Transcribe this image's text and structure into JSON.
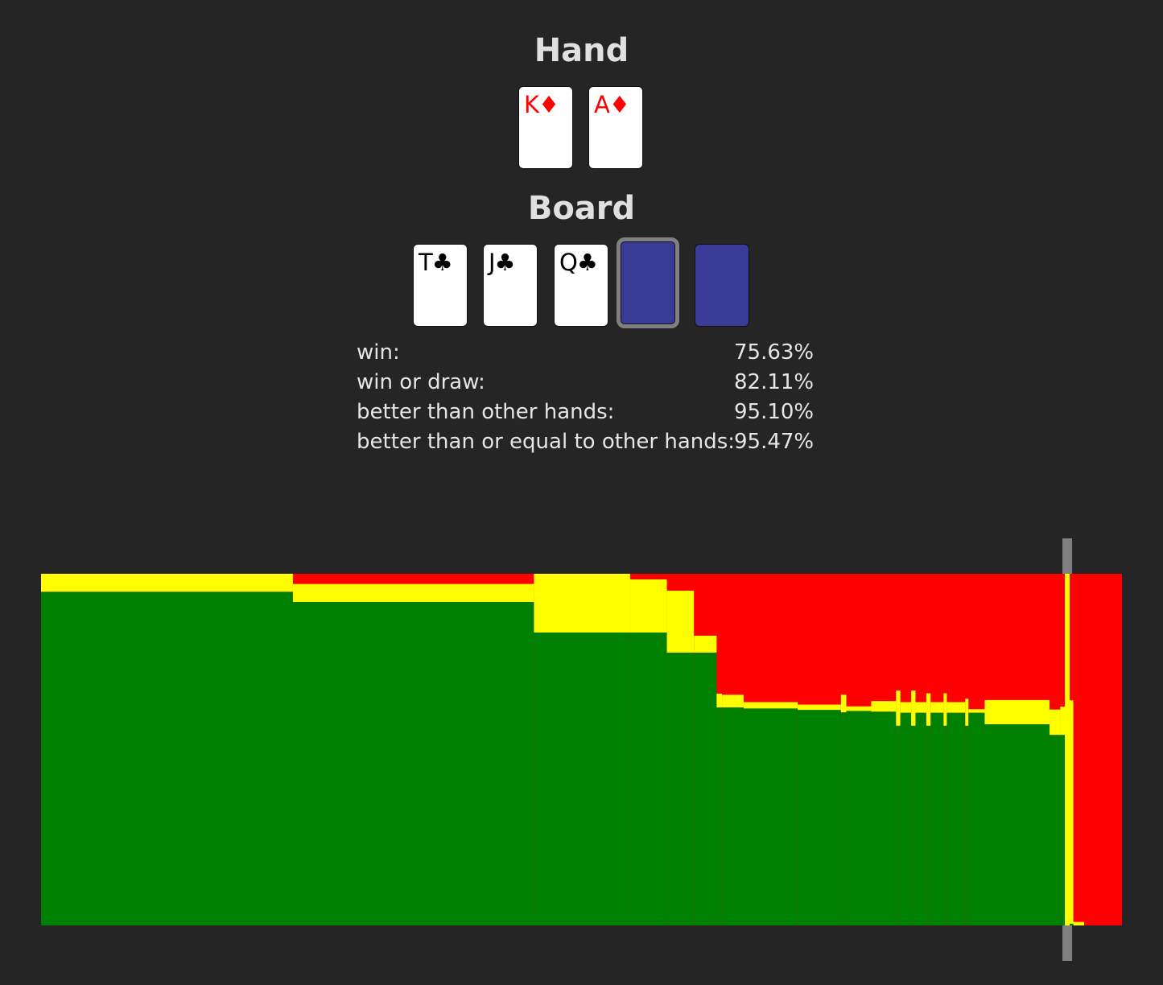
{
  "hand": {
    "title": "Hand",
    "cards": [
      {
        "rank": "K",
        "suit": "♦",
        "color": "#ff0000"
      },
      {
        "rank": "A",
        "suit": "♦",
        "color": "#ff0000"
      }
    ]
  },
  "board": {
    "title": "Board",
    "cards": [
      {
        "rank": "T",
        "suit": "♣",
        "color": "#000000"
      },
      {
        "rank": "J",
        "suit": "♣",
        "color": "#000000"
      },
      {
        "rank": "Q",
        "suit": "♣",
        "color": "#000000"
      }
    ],
    "empty_slot_color": "#393b96",
    "selected_slot": 4
  },
  "stats": [
    {
      "label": "win:",
      "value": "75.63%"
    },
    {
      "label": "win or draw:",
      "value": "82.11%"
    },
    {
      "label": "better than other hands:",
      "value": "95.10%"
    },
    {
      "label": "better than or equal to other hands:",
      "value": "95.47%"
    }
  ],
  "chart_data": {
    "type": "area",
    "description_of_axes": "x = opponent hands sorted by outcome (fraction 0-1), y = outcome shares stacked win/draw/loss",
    "colors": {
      "win": "#008000",
      "draw": "#ffff00",
      "loss": "#ff0000",
      "marker": "#808080"
    },
    "marker_x": 0.9494,
    "segments": [
      {
        "x0": 0.0,
        "x1": 0.233,
        "win": 0.949,
        "draw": 0.051
      },
      {
        "x0": 0.233,
        "x1": 0.456,
        "win": 0.92,
        "draw": 0.051
      },
      {
        "x0": 0.456,
        "x1": 0.545,
        "win": 0.833,
        "draw": 0.167
      },
      {
        "x0": 0.545,
        "x1": 0.579,
        "win": 0.833,
        "draw": 0.151
      },
      {
        "x0": 0.579,
        "x1": 0.604,
        "win": 0.776,
        "draw": 0.176
      },
      {
        "x0": 0.604,
        "x1": 0.6,
        "win": 0.776,
        "draw": 0.0
      },
      {
        "x0": 0.604,
        "x1": 0.625,
        "win": 0.776,
        "draw": 0.048
      },
      {
        "x0": 0.625,
        "x1": 0.63,
        "win": 0.62,
        "draw": 0.039
      },
      {
        "x0": 0.63,
        "x1": 0.65,
        "win": 0.62,
        "draw": 0.036
      },
      {
        "x0": 0.65,
        "x1": 0.7,
        "win": 0.617,
        "draw": 0.018
      },
      {
        "x0": 0.7,
        "x1": 0.74,
        "win": 0.613,
        "draw": 0.015
      },
      {
        "x0": 0.74,
        "x1": 0.745,
        "win": 0.606,
        "draw": 0.05
      },
      {
        "x0": 0.745,
        "x1": 0.768,
        "win": 0.61,
        "draw": 0.013
      },
      {
        "x0": 0.768,
        "x1": 0.791,
        "win": 0.608,
        "draw": 0.03
      },
      {
        "x0": 0.791,
        "x1": 0.795,
        "win": 0.568,
        "draw": 0.1
      },
      {
        "x0": 0.795,
        "x1": 0.805,
        "win": 0.605,
        "draw": 0.03
      },
      {
        "x0": 0.805,
        "x1": 0.809,
        "win": 0.568,
        "draw": 0.1
      },
      {
        "x0": 0.809,
        "x1": 0.819,
        "win": 0.605,
        "draw": 0.03
      },
      {
        "x0": 0.819,
        "x1": 0.823,
        "win": 0.568,
        "draw": 0.092
      },
      {
        "x0": 0.823,
        "x1": 0.835,
        "win": 0.605,
        "draw": 0.03
      },
      {
        "x0": 0.835,
        "x1": 0.838,
        "win": 0.568,
        "draw": 0.092
      },
      {
        "x0": 0.838,
        "x1": 0.855,
        "win": 0.605,
        "draw": 0.03
      },
      {
        "x0": 0.855,
        "x1": 0.858,
        "win": 0.568,
        "draw": 0.077
      },
      {
        "x0": 0.858,
        "x1": 0.873,
        "win": 0.605,
        "draw": 0.01
      },
      {
        "x0": 0.873,
        "x1": 0.933,
        "win": 0.572,
        "draw": 0.069
      },
      {
        "x0": 0.933,
        "x1": 0.943,
        "win": 0.542,
        "draw": 0.072
      },
      {
        "x0": 0.943,
        "x1": 0.949,
        "win": 0.542,
        "draw": 0.08
      },
      {
        "x0": 0.949,
        "x1": 0.955,
        "win": 0.005,
        "draw": 0.635
      },
      {
        "x0": 0.955,
        "x1": 0.965,
        "win": 0.0,
        "draw": 0.01
      },
      {
        "x0": 0.965,
        "x1": 1.0,
        "win": 0.0,
        "draw": 0.0
      }
    ]
  }
}
